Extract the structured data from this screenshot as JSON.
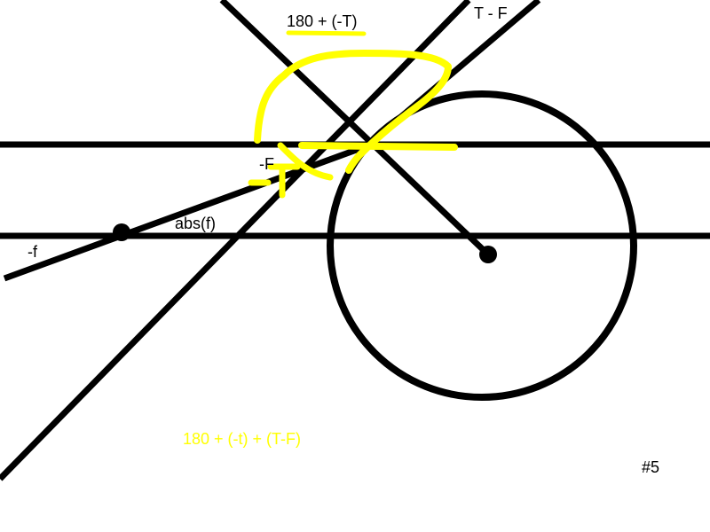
{
  "labels": {
    "top_angle": "180 + (-T)",
    "t_minus_f": "T - F",
    "neg_F": "-F",
    "abs_f": "abs(f)",
    "neg_f": "-f",
    "sum_expr": "180 + (-t) + (T-F)",
    "figure_number": "#5"
  },
  "colors": {
    "ink": "#000000",
    "highlight": "#ffff00",
    "background": "#ffffff"
  }
}
